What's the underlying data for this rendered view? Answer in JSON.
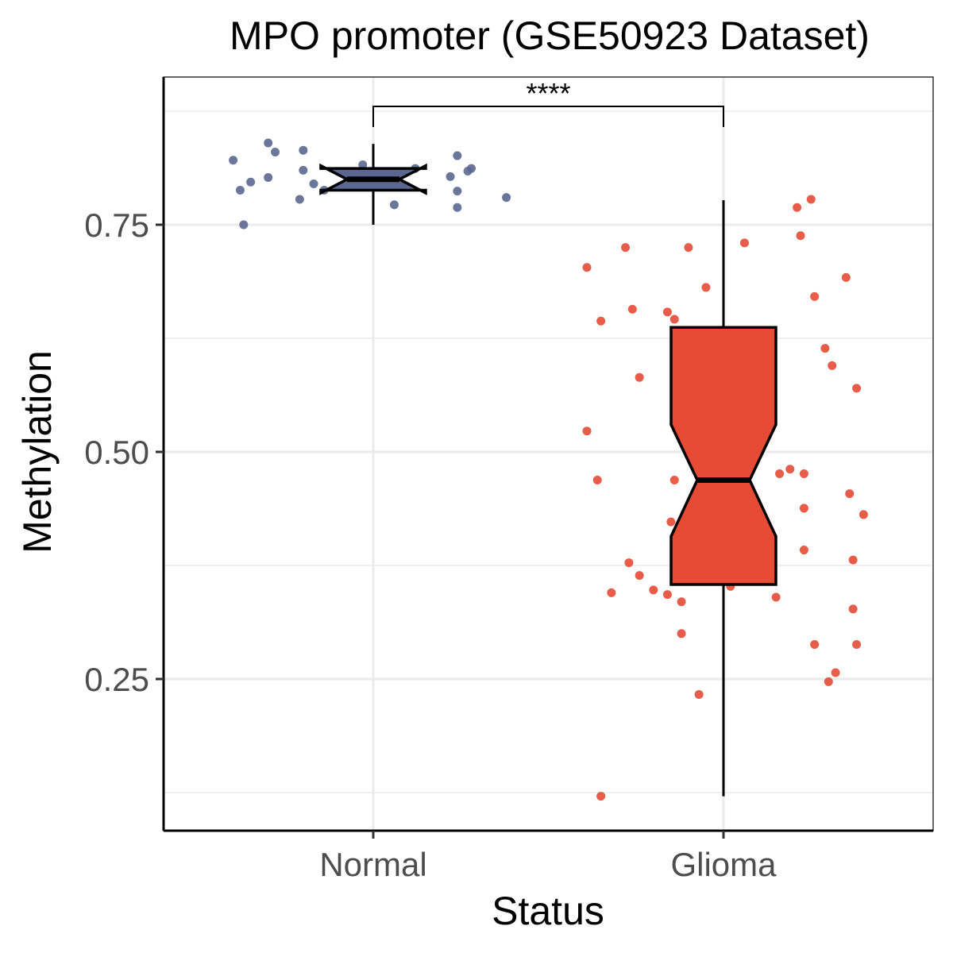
{
  "chart_data": {
    "type": "boxplot",
    "title": "MPO promoter (GSE50923 Dataset)",
    "xlabel": "Status",
    "ylabel": "Methylation",
    "categories": [
      "Normal",
      "Glioma"
    ],
    "ylim": [
      0.09,
      0.91
    ],
    "yticks": [
      0.25,
      0.5,
      0.75
    ],
    "ytick_labels": [
      "0.25",
      "0.50",
      "0.75"
    ],
    "yminor": [
      0.125,
      0.375,
      0.625,
      0.875
    ],
    "grid": true,
    "notch": true,
    "colors": {
      "Normal": "#5b6790",
      "Glioma": "#e64b35"
    },
    "series": [
      {
        "name": "Normal",
        "box": {
          "whisker_low": 0.75,
          "q1": 0.788,
          "median": 0.8,
          "q3": 0.812,
          "whisker_high": 0.839,
          "notch_low": 0.785,
          "notch_high": 0.815
        },
        "points": [
          {
            "jitter": -0.4,
            "y": 0.821
          },
          {
            "jitter": -0.38,
            "y": 0.788
          },
          {
            "jitter": -0.35,
            "y": 0.797
          },
          {
            "jitter": -0.37,
            "y": 0.75
          },
          {
            "jitter": -0.3,
            "y": 0.84
          },
          {
            "jitter": -0.28,
            "y": 0.83
          },
          {
            "jitter": -0.3,
            "y": 0.802
          },
          {
            "jitter": -0.2,
            "y": 0.832
          },
          {
            "jitter": -0.2,
            "y": 0.81
          },
          {
            "jitter": -0.21,
            "y": 0.778
          },
          {
            "jitter": -0.17,
            "y": 0.795
          },
          {
            "jitter": -0.14,
            "y": 0.788
          },
          {
            "jitter": -0.03,
            "y": 0.816
          },
          {
            "jitter": -0.01,
            "y": 0.8
          },
          {
            "jitter": -0.06,
            "y": 0.795
          },
          {
            "jitter": 0.12,
            "y": 0.812
          },
          {
            "jitter": 0.06,
            "y": 0.772
          },
          {
            "jitter": 0.24,
            "y": 0.826
          },
          {
            "jitter": 0.22,
            "y": 0.803
          },
          {
            "jitter": 0.28,
            "y": 0.812
          },
          {
            "jitter": 0.27,
            "y": 0.809
          },
          {
            "jitter": 0.24,
            "y": 0.787
          },
          {
            "jitter": 0.24,
            "y": 0.769
          },
          {
            "jitter": 0.38,
            "y": 0.78
          }
        ]
      },
      {
        "name": "Glioma",
        "box": {
          "whisker_low": 0.121,
          "q1": 0.354,
          "median": 0.469,
          "q3": 0.637,
          "whisker_high": 0.777,
          "notch_low": 0.407,
          "notch_high": 0.53
        },
        "points": [
          {
            "jitter": -0.39,
            "y": 0.703
          },
          {
            "jitter": -0.35,
            "y": 0.644
          },
          {
            "jitter": -0.28,
            "y": 0.725
          },
          {
            "jitter": -0.26,
            "y": 0.657
          },
          {
            "jitter": -0.24,
            "y": 0.582
          },
          {
            "jitter": -0.16,
            "y": 0.654
          },
          {
            "jitter": -0.14,
            "y": 0.646
          },
          {
            "jitter": -0.1,
            "y": 0.725
          },
          {
            "jitter": -0.05,
            "y": 0.681
          },
          {
            "jitter": 0.06,
            "y": 0.73
          },
          {
            "jitter": 0.21,
            "y": 0.769
          },
          {
            "jitter": 0.25,
            "y": 0.778
          },
          {
            "jitter": 0.22,
            "y": 0.738
          },
          {
            "jitter": 0.35,
            "y": 0.692
          },
          {
            "jitter": 0.26,
            "y": 0.671
          },
          {
            "jitter": 0.29,
            "y": 0.614
          },
          {
            "jitter": 0.31,
            "y": 0.595
          },
          {
            "jitter": 0.38,
            "y": 0.57
          },
          {
            "jitter": -0.39,
            "y": 0.523
          },
          {
            "jitter": -0.36,
            "y": 0.469
          },
          {
            "jitter": -0.14,
            "y": 0.469
          },
          {
            "jitter": -0.15,
            "y": 0.423
          },
          {
            "jitter": 0.16,
            "y": 0.476
          },
          {
            "jitter": 0.19,
            "y": 0.481
          },
          {
            "jitter": 0.23,
            "y": 0.476
          },
          {
            "jitter": 0.36,
            "y": 0.454
          },
          {
            "jitter": 0.4,
            "y": 0.431
          },
          {
            "jitter": 0.23,
            "y": 0.438
          },
          {
            "jitter": 0.23,
            "y": 0.392
          },
          {
            "jitter": 0.37,
            "y": 0.381
          },
          {
            "jitter": -0.27,
            "y": 0.378
          },
          {
            "jitter": -0.24,
            "y": 0.364
          },
          {
            "jitter": -0.32,
            "y": 0.345
          },
          {
            "jitter": -0.2,
            "y": 0.348
          },
          {
            "jitter": -0.16,
            "y": 0.343
          },
          {
            "jitter": -0.12,
            "y": 0.335
          },
          {
            "jitter": 0.02,
            "y": 0.352
          },
          {
            "jitter": 0.12,
            "y": 0.358
          },
          {
            "jitter": 0.15,
            "y": 0.34
          },
          {
            "jitter": 0.37,
            "y": 0.327
          },
          {
            "jitter": -0.12,
            "y": 0.3
          },
          {
            "jitter": 0.26,
            "y": 0.288
          },
          {
            "jitter": 0.38,
            "y": 0.288
          },
          {
            "jitter": 0.32,
            "y": 0.257
          },
          {
            "jitter": 0.3,
            "y": 0.247
          },
          {
            "jitter": -0.07,
            "y": 0.233
          },
          {
            "jitter": -0.35,
            "y": 0.121
          }
        ]
      }
    ],
    "annotations": [
      {
        "type": "significance",
        "from": "Normal",
        "to": "Glioma",
        "label": "****",
        "y": 0.875
      }
    ]
  }
}
